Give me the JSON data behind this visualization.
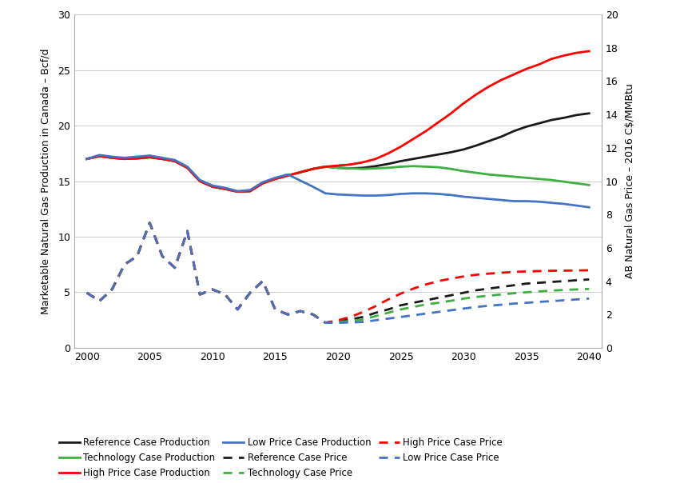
{
  "ylabel_left": "Marketable Natural Gas Production in Canada – Bcf/d",
  "ylabel_right": "AB Natural Gas Price – 2016 C$/MMBtu",
  "ylim_left": [
    0,
    30
  ],
  "ylim_right": [
    0,
    20
  ],
  "yticks_left": [
    0,
    5,
    10,
    15,
    20,
    25,
    30
  ],
  "yticks_right": [
    0,
    2,
    4,
    6,
    8,
    10,
    12,
    14,
    16,
    18,
    20
  ],
  "xlim": [
    1999,
    2041
  ],
  "xticks": [
    2000,
    2005,
    2010,
    2015,
    2020,
    2025,
    2030,
    2035,
    2040
  ],
  "colors": {
    "black": "#1A1A1A",
    "green": "#3CB040",
    "red": "#FF0000",
    "blue": "#4472C4"
  },
  "ref_prod_x": [
    2000,
    2001,
    2002,
    2003,
    2004,
    2005,
    2006,
    2007,
    2008,
    2009,
    2010,
    2011,
    2012,
    2013,
    2014,
    2015,
    2016,
    2017,
    2018,
    2019,
    2020,
    2021,
    2022,
    2023,
    2024,
    2025,
    2026,
    2027,
    2028,
    2029,
    2030,
    2031,
    2032,
    2033,
    2034,
    2035,
    2036,
    2037,
    2038,
    2039,
    2040
  ],
  "ref_prod_y": [
    17.0,
    17.25,
    17.1,
    17.0,
    17.05,
    17.15,
    17.0,
    16.8,
    16.2,
    15.0,
    14.5,
    14.3,
    14.05,
    14.1,
    14.8,
    15.2,
    15.5,
    15.8,
    16.1,
    16.3,
    16.2,
    16.15,
    16.2,
    16.35,
    16.55,
    16.8,
    17.0,
    17.2,
    17.4,
    17.6,
    17.85,
    18.2,
    18.6,
    19.0,
    19.5,
    19.9,
    20.2,
    20.5,
    20.7,
    20.95,
    21.1
  ],
  "tech_prod_x": [
    2000,
    2001,
    2002,
    2003,
    2004,
    2005,
    2006,
    2007,
    2008,
    2009,
    2010,
    2011,
    2012,
    2013,
    2014,
    2015,
    2016,
    2017,
    2018,
    2019,
    2020,
    2021,
    2022,
    2023,
    2024,
    2025,
    2026,
    2027,
    2028,
    2029,
    2030,
    2031,
    2032,
    2033,
    2034,
    2035,
    2036,
    2037,
    2038,
    2039,
    2040
  ],
  "tech_prod_y": [
    17.0,
    17.25,
    17.1,
    17.0,
    17.05,
    17.15,
    17.0,
    16.8,
    16.2,
    15.0,
    14.5,
    14.3,
    14.05,
    14.1,
    14.8,
    15.2,
    15.5,
    15.8,
    16.1,
    16.3,
    16.2,
    16.15,
    16.1,
    16.15,
    16.2,
    16.3,
    16.35,
    16.3,
    16.25,
    16.1,
    15.9,
    15.75,
    15.6,
    15.5,
    15.4,
    15.3,
    15.2,
    15.1,
    14.95,
    14.8,
    14.65
  ],
  "high_prod_x": [
    2000,
    2001,
    2002,
    2003,
    2004,
    2005,
    2006,
    2007,
    2008,
    2009,
    2010,
    2011,
    2012,
    2013,
    2014,
    2015,
    2016,
    2017,
    2018,
    2019,
    2020,
    2021,
    2022,
    2023,
    2024,
    2025,
    2026,
    2027,
    2028,
    2029,
    2030,
    2031,
    2032,
    2033,
    2034,
    2035,
    2036,
    2037,
    2038,
    2039,
    2040
  ],
  "high_prod_y": [
    17.0,
    17.25,
    17.1,
    17.0,
    17.05,
    17.15,
    17.0,
    16.8,
    16.2,
    15.0,
    14.5,
    14.3,
    14.05,
    14.1,
    14.8,
    15.2,
    15.5,
    15.8,
    16.1,
    16.3,
    16.4,
    16.5,
    16.7,
    17.0,
    17.5,
    18.1,
    18.8,
    19.5,
    20.3,
    21.1,
    22.0,
    22.8,
    23.5,
    24.1,
    24.6,
    25.1,
    25.5,
    26.0,
    26.3,
    26.55,
    26.7
  ],
  "low_prod_x": [
    2000,
    2001,
    2002,
    2003,
    2004,
    2005,
    2006,
    2007,
    2008,
    2009,
    2010,
    2011,
    2012,
    2013,
    2014,
    2015,
    2016,
    2017,
    2018,
    2019,
    2020,
    2021,
    2022,
    2023,
    2024,
    2025,
    2026,
    2027,
    2028,
    2029,
    2030,
    2031,
    2032,
    2033,
    2034,
    2035,
    2036,
    2037,
    2038,
    2039,
    2040
  ],
  "low_prod_y": [
    17.0,
    17.35,
    17.2,
    17.1,
    17.2,
    17.3,
    17.1,
    16.9,
    16.3,
    15.1,
    14.6,
    14.4,
    14.1,
    14.2,
    14.9,
    15.3,
    15.6,
    15.05,
    14.5,
    13.9,
    13.8,
    13.75,
    13.7,
    13.7,
    13.75,
    13.85,
    13.9,
    13.9,
    13.85,
    13.75,
    13.6,
    13.5,
    13.4,
    13.3,
    13.2,
    13.2,
    13.15,
    13.05,
    12.95,
    12.8,
    12.65
  ],
  "ref_price_x": [
    2000,
    2001,
    2002,
    2003,
    2004,
    2005,
    2006,
    2007,
    2008,
    2009,
    2010,
    2011,
    2012,
    2013,
    2014,
    2015,
    2016,
    2017,
    2018,
    2019,
    2020,
    2021,
    2022,
    2023,
    2024,
    2025,
    2026,
    2027,
    2028,
    2029,
    2030,
    2031,
    2032,
    2033,
    2034,
    2035,
    2036,
    2037,
    2038,
    2039,
    2040
  ],
  "ref_price_y": [
    3.3,
    2.8,
    3.5,
    5.0,
    5.5,
    7.5,
    5.5,
    4.8,
    7.0,
    3.2,
    3.5,
    3.2,
    2.3,
    3.3,
    4.0,
    2.3,
    2.0,
    2.2,
    2.0,
    1.5,
    1.6,
    1.7,
    1.85,
    2.1,
    2.3,
    2.55,
    2.7,
    2.85,
    3.0,
    3.15,
    3.3,
    3.45,
    3.55,
    3.65,
    3.75,
    3.85,
    3.9,
    3.95,
    4.0,
    4.05,
    4.1
  ],
  "tech_price_x": [
    2000,
    2001,
    2002,
    2003,
    2004,
    2005,
    2006,
    2007,
    2008,
    2009,
    2010,
    2011,
    2012,
    2013,
    2014,
    2015,
    2016,
    2017,
    2018,
    2019,
    2020,
    2021,
    2022,
    2023,
    2024,
    2025,
    2026,
    2027,
    2028,
    2029,
    2030,
    2031,
    2032,
    2033,
    2034,
    2035,
    2036,
    2037,
    2038,
    2039,
    2040
  ],
  "tech_price_y": [
    3.3,
    2.8,
    3.5,
    5.0,
    5.5,
    7.5,
    5.5,
    4.8,
    7.0,
    3.2,
    3.5,
    3.2,
    2.3,
    3.3,
    4.0,
    2.3,
    2.0,
    2.2,
    2.0,
    1.5,
    1.55,
    1.6,
    1.7,
    1.9,
    2.1,
    2.3,
    2.45,
    2.6,
    2.7,
    2.82,
    2.95,
    3.05,
    3.12,
    3.2,
    3.27,
    3.33,
    3.38,
    3.43,
    3.47,
    3.5,
    3.53
  ],
  "high_price_x": [
    2000,
    2001,
    2002,
    2003,
    2004,
    2005,
    2006,
    2007,
    2008,
    2009,
    2010,
    2011,
    2012,
    2013,
    2014,
    2015,
    2016,
    2017,
    2018,
    2019,
    2020,
    2021,
    2022,
    2023,
    2024,
    2025,
    2026,
    2027,
    2028,
    2029,
    2030,
    2031,
    2032,
    2033,
    2034,
    2035,
    2036,
    2037,
    2038,
    2039,
    2040
  ],
  "high_price_y": [
    3.3,
    2.8,
    3.5,
    5.0,
    5.5,
    7.5,
    5.5,
    4.8,
    7.0,
    3.2,
    3.5,
    3.2,
    2.3,
    3.3,
    4.0,
    2.3,
    2.0,
    2.2,
    2.0,
    1.5,
    1.65,
    1.85,
    2.15,
    2.5,
    2.9,
    3.25,
    3.55,
    3.8,
    4.0,
    4.15,
    4.28,
    4.38,
    4.45,
    4.5,
    4.55,
    4.58,
    4.6,
    4.62,
    4.63,
    4.64,
    4.65
  ],
  "low_price_x": [
    2000,
    2001,
    2002,
    2003,
    2004,
    2005,
    2006,
    2007,
    2008,
    2009,
    2010,
    2011,
    2012,
    2013,
    2014,
    2015,
    2016,
    2017,
    2018,
    2019,
    2020,
    2021,
    2022,
    2023,
    2024,
    2025,
    2026,
    2027,
    2028,
    2029,
    2030,
    2031,
    2032,
    2033,
    2034,
    2035,
    2036,
    2037,
    2038,
    2039,
    2040
  ],
  "low_price_y": [
    3.3,
    2.8,
    3.5,
    5.0,
    5.5,
    7.5,
    5.5,
    4.8,
    7.0,
    3.2,
    3.5,
    3.2,
    2.3,
    3.3,
    4.0,
    2.3,
    2.0,
    2.2,
    2.0,
    1.5,
    1.5,
    1.52,
    1.55,
    1.65,
    1.75,
    1.85,
    1.95,
    2.05,
    2.15,
    2.25,
    2.35,
    2.45,
    2.52,
    2.58,
    2.65,
    2.7,
    2.75,
    2.8,
    2.85,
    2.9,
    2.95
  ],
  "background_color": "#FFFFFF",
  "grid_color": "#CCCCCC",
  "legend_items": [
    {
      "label": "Reference Case Production",
      "color": "#1A1A1A",
      "ls": "-"
    },
    {
      "label": "Technology Case Production",
      "color": "#3CB040",
      "ls": "-"
    },
    {
      "label": "High Price Case Production",
      "color": "#FF0000",
      "ls": "-"
    },
    {
      "label": "Low Price Case Production",
      "color": "#4472C4",
      "ls": "-"
    },
    {
      "label": "Reference Case Price",
      "color": "#1A1A1A",
      "ls": "--"
    },
    {
      "label": "Technology Case Price",
      "color": "#3CB040",
      "ls": "--"
    },
    {
      "label": "High Price Case Price",
      "color": "#FF0000",
      "ls": "--"
    },
    {
      "label": "Low Price Case Price",
      "color": "#4472C4",
      "ls": "--"
    }
  ]
}
